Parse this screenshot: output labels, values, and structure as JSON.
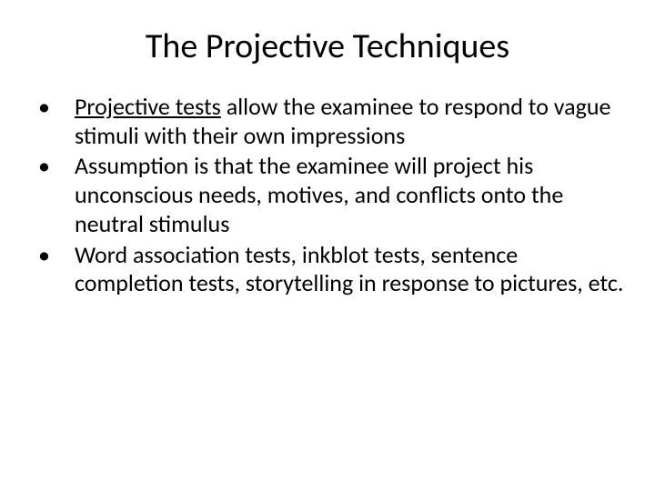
{
  "slide": {
    "title": "The Projective Techniques",
    "title_fontsize": 38,
    "body_fontsize": 26,
    "background_color": "#ffffff",
    "text_color": "#000000",
    "font_family": "Calibri",
    "bullets": [
      {
        "marker": "•",
        "underlined_prefix": "Projective tests",
        "rest": " allow the examinee to respond to vague stimuli with their own impressions"
      },
      {
        "marker": "•",
        "underlined_prefix": "",
        "rest": "Assumption is that the examinee will project his unconscious needs, motives, and conflicts onto the neutral stimulus"
      },
      {
        "marker": "•",
        "underlined_prefix": "",
        "rest": "Word association tests, inkblot tests, sentence completion tests, storytelling in response to pictures, etc."
      }
    ]
  }
}
